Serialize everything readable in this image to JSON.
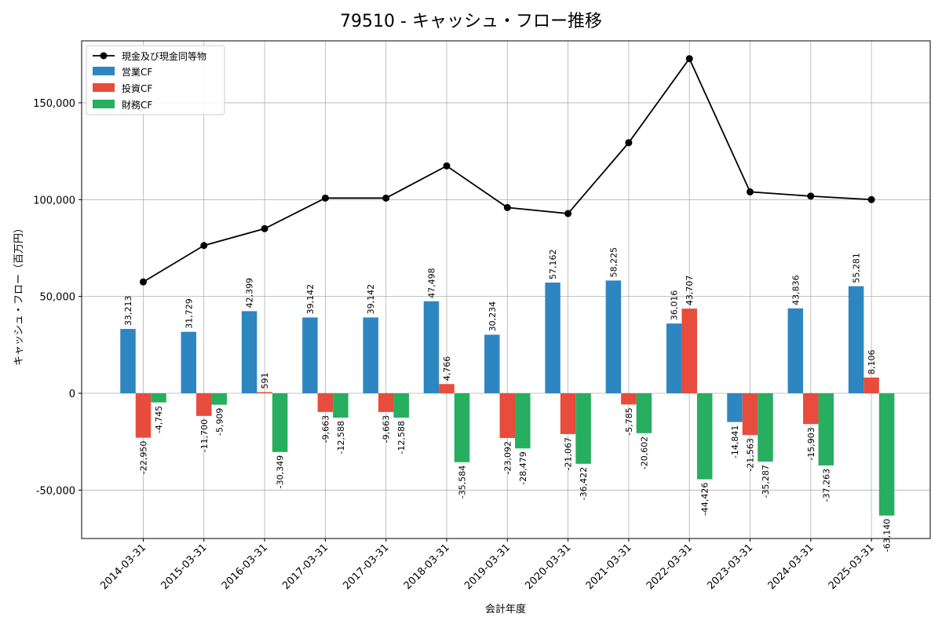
{
  "chart_data": {
    "type": "bar",
    "title": "79510 - キャッシュ・フロー推移",
    "xlabel": "会計年度",
    "ylabel": "キャッシュ・フロー（百万円）",
    "ylim": [
      -75000,
      182000
    ],
    "yticks": [
      -50000,
      0,
      50000,
      100000,
      150000
    ],
    "ytick_labels": [
      "-50,000",
      "0",
      "50,000",
      "100,000",
      "150,000"
    ],
    "grid": true,
    "legend_position": "top-left",
    "categories": [
      "2014-03-31",
      "2015-03-31",
      "2016-03-31",
      "2017-03-31",
      "2017-03-31",
      "2018-03-31",
      "2019-03-31",
      "2020-03-31",
      "2021-03-31",
      "2022-03-31",
      "2023-03-31",
      "2024-03-31",
      "2025-03-31"
    ],
    "line": {
      "name": "現金及び現金同等物",
      "color": "#000000",
      "values": [
        57500,
        76300,
        85000,
        100800,
        100800,
        117400,
        95900,
        92800,
        129400,
        172800,
        104000,
        101800,
        100000
      ]
    },
    "series": [
      {
        "name": "営業CF",
        "color": "#2E86C1",
        "values": [
          33213,
          31729,
          42399,
          39142,
          39142,
          47498,
          30234,
          57162,
          58225,
          36016,
          -14841,
          43836,
          55281
        ],
        "labels": [
          "33,213",
          "31,729",
          "42,399",
          "39,142",
          "39,142",
          "47,498",
          "30,234",
          "57,162",
          "58,225",
          "36,016",
          "-14,841",
          "43,836",
          "55,281"
        ]
      },
      {
        "name": "投資CF",
        "color": "#E74C3C",
        "values": [
          -22950,
          -11700,
          591,
          -9663,
          -9663,
          4766,
          -23092,
          -21067,
          -5785,
          43707,
          -21563,
          -15903,
          8106
        ],
        "labels": [
          "-22,950",
          "-11,700",
          "591",
          "-9,663",
          "-9,663",
          "4,766",
          "-23,092",
          "-21,067",
          "-5,785",
          "43,707",
          "-21,563",
          "-15,903",
          "8,106"
        ]
      },
      {
        "name": "財務CF",
        "color": "#27AE60",
        "values": [
          -4745,
          -5909,
          -30349,
          -12588,
          -12588,
          -35584,
          -28479,
          -36422,
          -20602,
          -44426,
          -35287,
          -37263,
          -63140
        ],
        "labels": [
          "-4,745",
          "-5,909",
          "-30,349",
          "-12,588",
          "-12,588",
          "-35,584",
          "-28,479",
          "-36,422",
          "-20,602",
          "-44,426",
          "-35,287",
          "-37,263",
          "-63,140"
        ]
      }
    ]
  }
}
